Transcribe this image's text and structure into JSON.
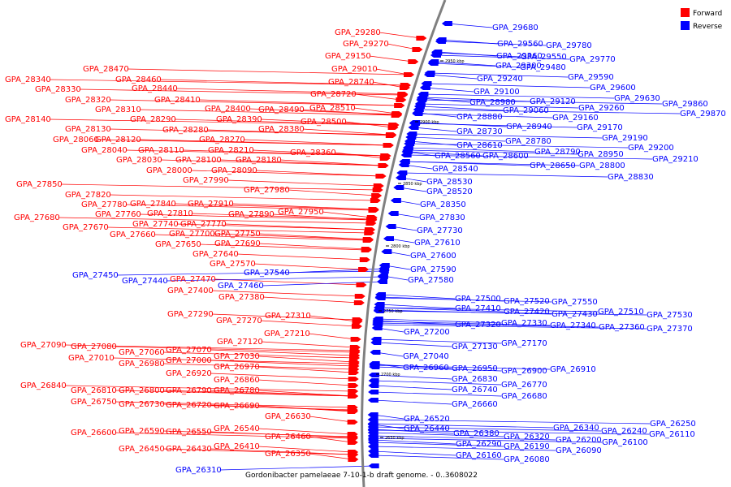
{
  "caption": "Gordonibacter pamelaeae 7-10-1-b draft genome. - 0..3608022",
  "legend": [
    {
      "label": "Forward",
      "color": "#ff0000"
    },
    {
      "label": "Reverse",
      "color": "#0000ff"
    }
  ],
  "colors": {
    "forward": "#ff0000",
    "reverse": "#0000ff",
    "backbone": "#808080"
  },
  "ticks": [
    "2650 kbp",
    "2700 kbp",
    "2750 kbp",
    "2800 kbp",
    "2850 kbp",
    "2900 kbp",
    "2950 kbp"
  ],
  "forward_genes": [
    "GPA_29280",
    "GPA_29270",
    "GPA_29150",
    "GPA_29010",
    "GPA_28740",
    "GPA_28720",
    "GPA_28510",
    "GPA_28500",
    "GPA_28490",
    "GPA_28470",
    "GPA_28460",
    "GPA_28440",
    "GPA_28410",
    "GPA_28400",
    "GPA_28390",
    "GPA_28380",
    "GPA_28360",
    "GPA_28340",
    "GPA_28330",
    "GPA_28320",
    "GPA_28310",
    "GPA_28290",
    "GPA_28280",
    "GPA_28270",
    "GPA_28210",
    "GPA_28180",
    "GPA_28140",
    "GPA_28130",
    "GPA_28120",
    "GPA_28110",
    "GPA_28100",
    "GPA_28090",
    "GPA_28060",
    "GPA_28040",
    "GPA_28030",
    "GPA_28000",
    "GPA_27990",
    "GPA_27980",
    "GPA_27950",
    "GPA_27910",
    "GPA_27890",
    "GPA_27850",
    "GPA_27840",
    "GPA_27820",
    "GPA_27810",
    "GPA_27780",
    "GPA_27770",
    "GPA_27760",
    "GPA_27750",
    "GPA_27740",
    "GPA_27700",
    "GPA_27690",
    "GPA_27680",
    "GPA_27670",
    "GPA_27660",
    "GPA_27650",
    "GPA_27640",
    "GPA_27570",
    "GPA_27470",
    "GPA_27400",
    "GPA_27380",
    "GPA_27310",
    "GPA_27290",
    "GPA_27270",
    "GPA_27210",
    "GPA_27120",
    "GPA_27090",
    "GPA_27080",
    "GPA_27070",
    "GPA_27060",
    "GPA_27030",
    "GPA_27010",
    "GPA_27000",
    "GPA_26980",
    "GPA_26970",
    "GPA_26920",
    "GPA_26860",
    "GPA_26840",
    "GPA_26810",
    "GPA_26800",
    "GPA_26790",
    "GPA_26780",
    "GPA_26750",
    "GPA_26730",
    "GPA_26720",
    "GPA_26690",
    "GPA_26630",
    "GPA_26600",
    "GPA_26590",
    "GPA_26550",
    "GPA_26540",
    "GPA_26460",
    "GPA_26450",
    "GPA_26430",
    "GPA_26410",
    "GPA_26350"
  ],
  "reverse_genes": [
    "GPA_29680",
    "GPA_29560",
    "GPA_29780",
    "GPA_29360",
    "GPA_29550",
    "GPA_29770",
    "GPA_29300",
    "GPA_29480",
    "GPA_29240",
    "GPA_29590",
    "GPA_29600",
    "GPA_29100",
    "GPA_29630",
    "GPA_29860",
    "GPA_29870",
    "GPA_28980",
    "GPA_29120",
    "GPA_29060",
    "GPA_29260",
    "GPA_28880",
    "GPA_29160",
    "GPA_28940",
    "GPA_29170",
    "GPA_28730",
    "GPA_28780",
    "GPA_29190",
    "GPA_28610",
    "GPA_28790",
    "GPA_29200",
    "GPA_28560",
    "GPA_28600",
    "GPA_28950",
    "GPA_29210",
    "GPA_28650",
    "GPA_28800",
    "GPA_28540",
    "GPA_28830",
    "GPA_28530",
    "GPA_28520",
    "GPA_28350",
    "GPA_27830",
    "GPA_27730",
    "GPA_27610",
    "GPA_27600",
    "GPA_27590",
    "GPA_27580",
    "GPA_27540",
    "GPA_27450",
    "GPA_27440",
    "GPA_27460",
    "GPA_27500",
    "GPA_27520",
    "GPA_27550",
    "GPA_27410",
    "GPA_27420",
    "GPA_27430",
    "GPA_27510",
    "GPA_27530",
    "GPA_27320",
    "GPA_27330",
    "GPA_27340",
    "GPA_27360",
    "GPA_27370",
    "GPA_27200",
    "GPA_27130",
    "GPA_27170",
    "GPA_27040",
    "GPA_26960",
    "GPA_26950",
    "GPA_26900",
    "GPA_26910",
    "GPA_26830",
    "GPA_26770",
    "GPA_26740",
    "GPA_26680",
    "GPA_26660",
    "GPA_26520",
    "GPA_26440",
    "GPA_26380",
    "GPA_26320",
    "GPA_26340",
    "GPA_26240",
    "GPA_26250",
    "GPA_26290",
    "GPA_26200",
    "GPA_26110",
    "GPA_26190",
    "GPA_26100",
    "GPA_26160",
    "GPA_26090",
    "GPA_26080",
    "GPA_26310"
  ]
}
